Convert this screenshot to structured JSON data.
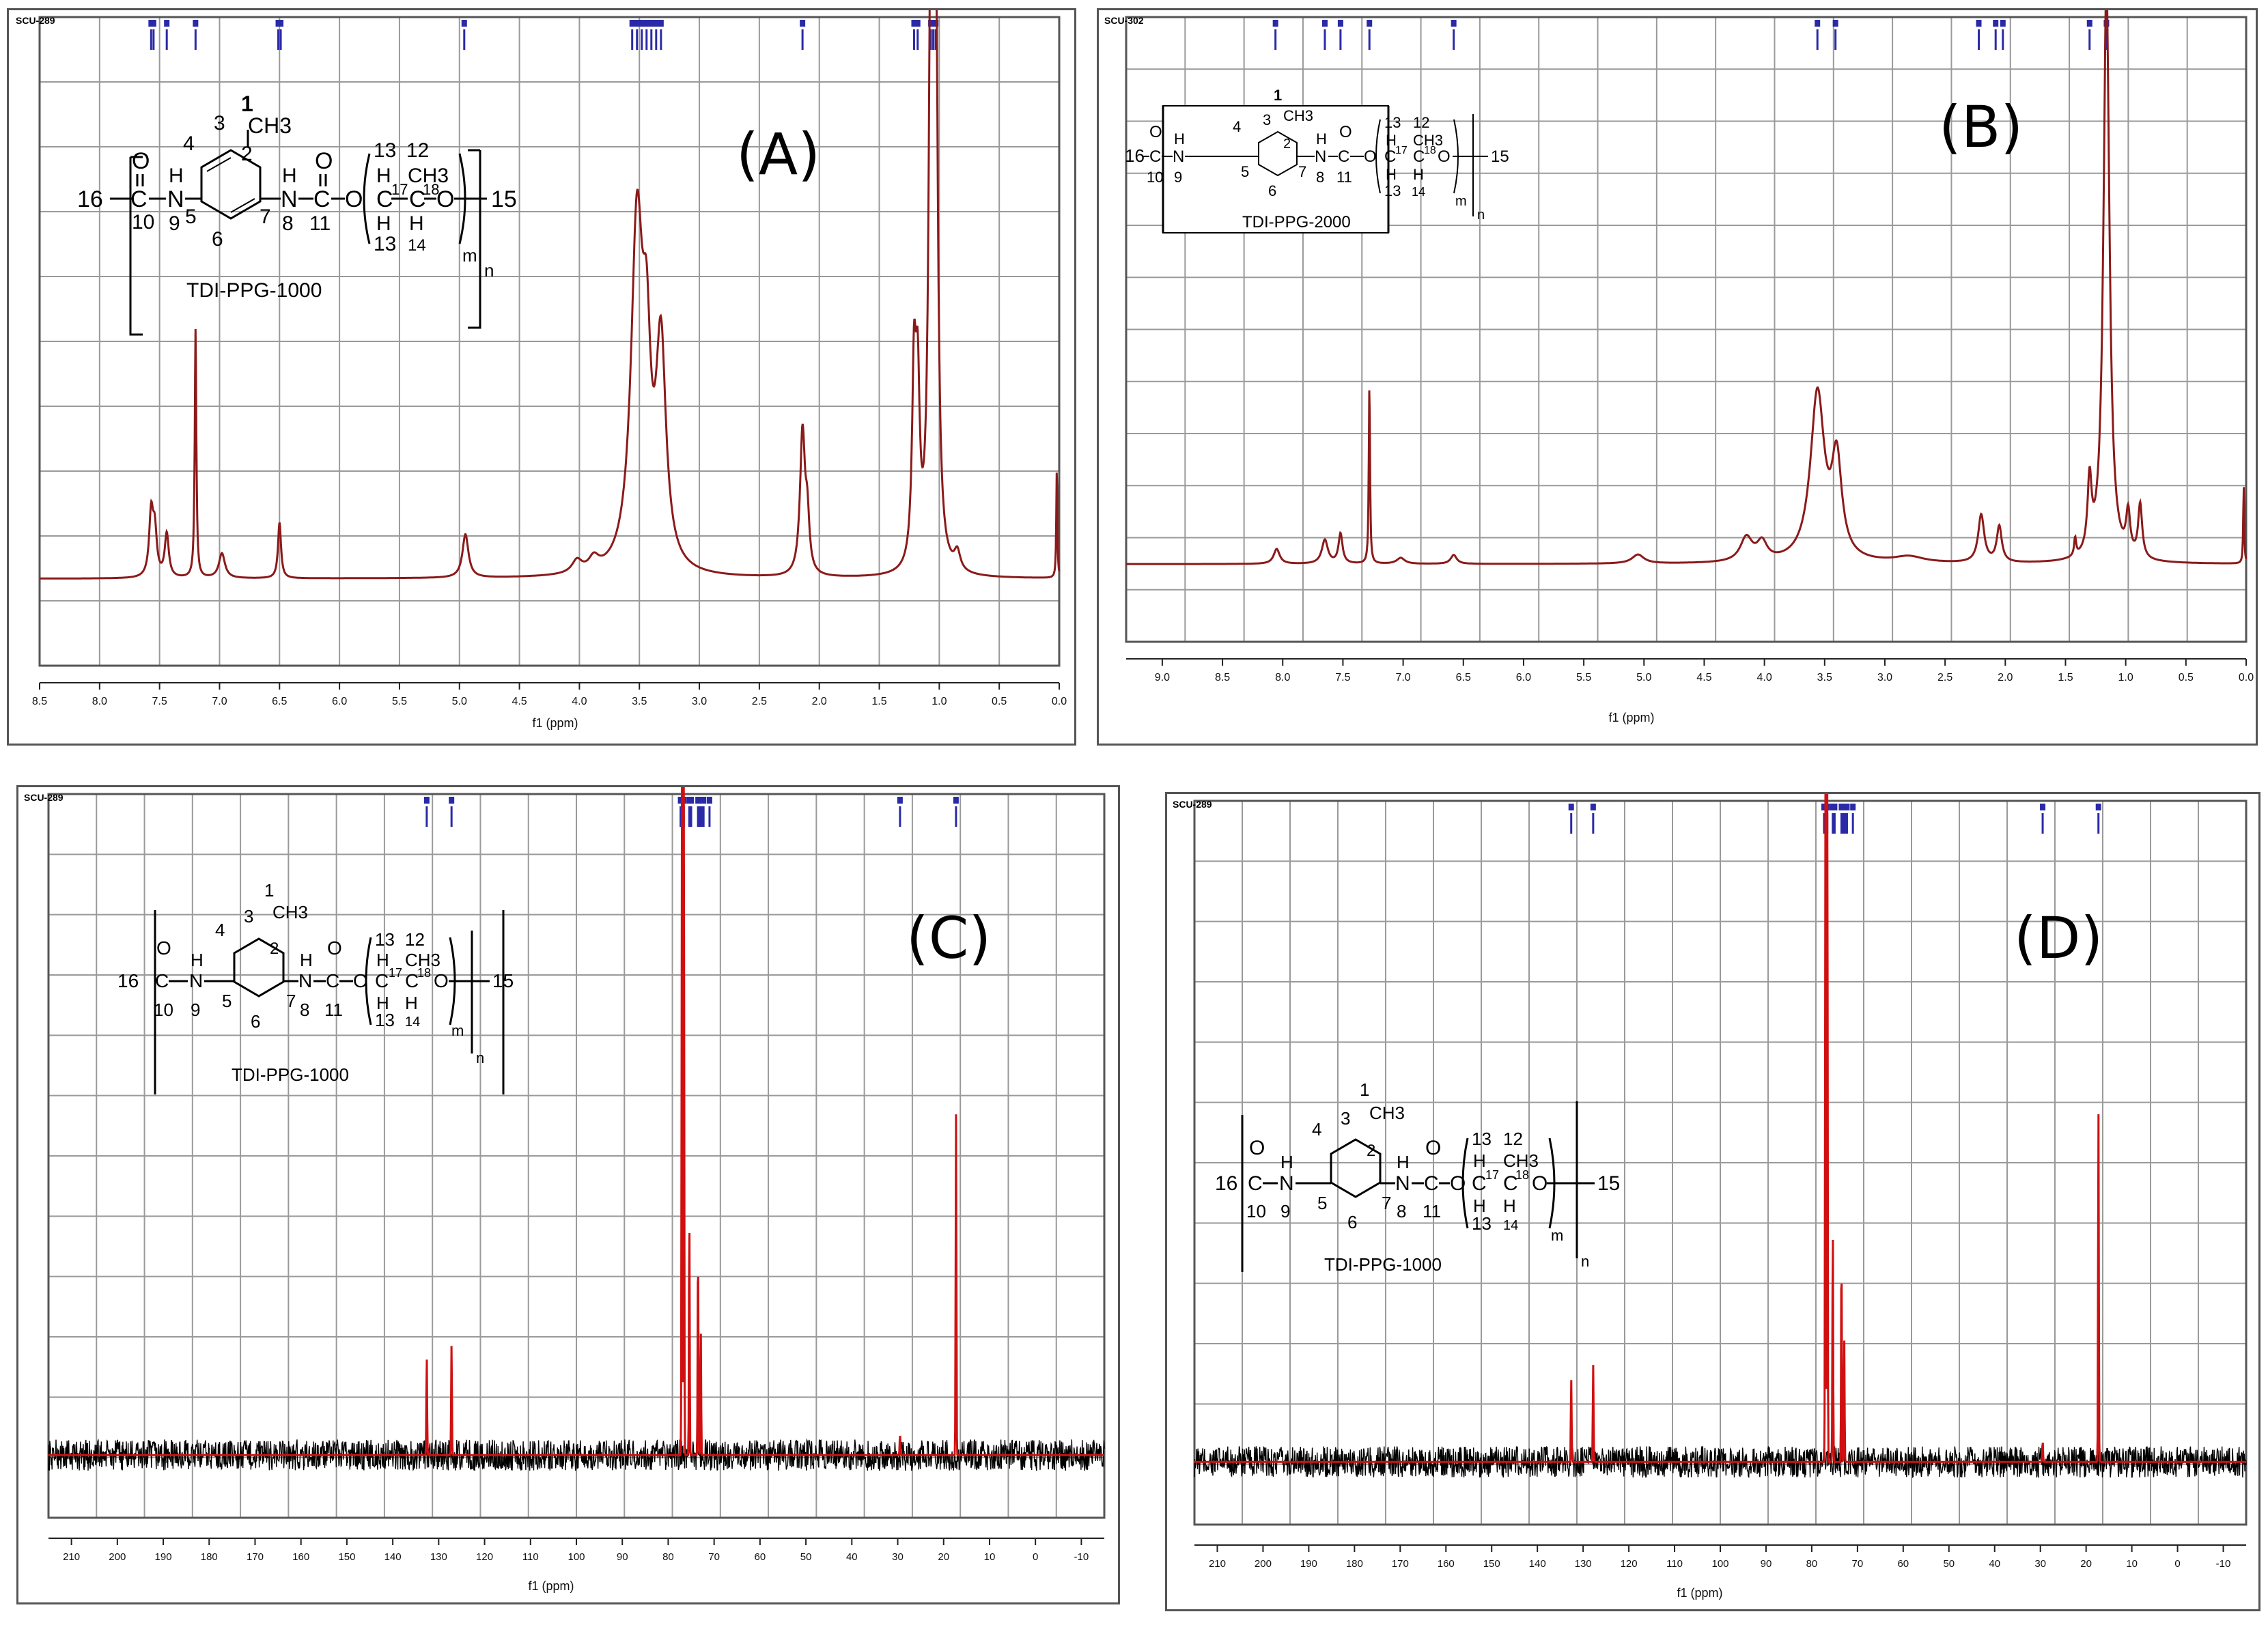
{
  "colors": {
    "spectrum_line": "#8b1a1a",
    "carbon_noise": "#000000",
    "carbon_peaks": "#d01010",
    "grid": "#9a9a9a",
    "frame": "#555555",
    "peak_marks": "#2a2aa8"
  },
  "structure_labels": {
    "numbers": [
      "1",
      "2",
      "3",
      "4",
      "5",
      "6",
      "7",
      "8",
      "9",
      "10",
      "11",
      "12",
      "13",
      "14",
      "15",
      "16",
      "17",
      "18"
    ],
    "atoms": [
      "CH3",
      "H",
      "N",
      "O",
      "C",
      "O",
      "n",
      "m"
    ],
    "name_1000": "TDI-PPG-1000",
    "name_2000": "TDI-PPG-2000"
  },
  "panels": [
    {
      "id": "A",
      "label": "(A)",
      "sample_id": "SCU-289",
      "compound": "TDI-PPG-1000",
      "xlabel": "f1 (ppm)",
      "xticks": [
        "8.5",
        "8.0",
        "7.5",
        "7.0",
        "6.5",
        "6.0",
        "5.5",
        "5.0",
        "4.5",
        "4.0",
        "3.5",
        "3.0",
        "2.5",
        "2.0",
        "1.5",
        "1.0",
        "0.5",
        "0.0"
      ]
    },
    {
      "id": "B",
      "label": "(B)",
      "sample_id": "SCU-302",
      "compound": "TDI-PPG-2000",
      "xlabel": "f1 (ppm)",
      "xticks": [
        "9.0",
        "8.5",
        "8.0",
        "7.5",
        "7.0",
        "6.5",
        "6.0",
        "5.5",
        "5.0",
        "4.5",
        "4.0",
        "3.5",
        "3.0",
        "2.5",
        "2.0",
        "1.5",
        "1.0",
        "0.5",
        "0.0"
      ]
    },
    {
      "id": "C",
      "label": "(C)",
      "sample_id": "SCU-289",
      "compound": "TDI-PPG-1000",
      "xlabel": "f1 (ppm)",
      "xticks": [
        "210",
        "200",
        "190",
        "180",
        "170",
        "160",
        "150",
        "140",
        "130",
        "120",
        "110",
        "100",
        "90",
        "80",
        "70",
        "60",
        "50",
        "40",
        "30",
        "20",
        "10",
        "0",
        "-10"
      ]
    },
    {
      "id": "D",
      "label": "(D)",
      "sample_id": "SCU-289",
      "compound": "TDI-PPG-1000",
      "xlabel": "f1 (ppm)",
      "xticks": [
        "210",
        "200",
        "190",
        "180",
        "170",
        "160",
        "150",
        "140",
        "130",
        "120",
        "110",
        "100",
        "90",
        "80",
        "70",
        "60",
        "50",
        "40",
        "30",
        "20",
        "10",
        "0",
        "-10"
      ]
    }
  ],
  "chart_data": [
    {
      "type": "line",
      "panel": "A",
      "xlabel": "f1 (ppm)",
      "xlim": [
        8.5,
        0.0
      ],
      "ylim": [
        0,
        1
      ],
      "grid": true,
      "baseline": 0.14,
      "peaks": [
        {
          "x": 7.57,
          "h": 0.1,
          "w": 0.02
        },
        {
          "x": 7.54,
          "h": 0.07,
          "w": 0.02
        },
        {
          "x": 7.44,
          "h": 0.07,
          "w": 0.02
        },
        {
          "x": 7.2,
          "h": 0.4,
          "w": 0.008
        },
        {
          "x": 6.98,
          "h": 0.04,
          "w": 0.03
        },
        {
          "x": 6.5,
          "h": 0.09,
          "w": 0.015
        },
        {
          "x": 4.95,
          "h": 0.07,
          "w": 0.03
        },
        {
          "x": 4.02,
          "h": 0.02,
          "w": 0.05
        },
        {
          "x": 3.88,
          "h": 0.02,
          "w": 0.05
        },
        {
          "x": 3.52,
          "h": 0.55,
          "w": 0.06
        },
        {
          "x": 3.44,
          "h": 0.26,
          "w": 0.04
        },
        {
          "x": 3.32,
          "h": 0.35,
          "w": 0.05
        },
        {
          "x": 2.14,
          "h": 0.23,
          "w": 0.025
        },
        {
          "x": 2.1,
          "h": 0.08,
          "w": 0.02
        },
        {
          "x": 1.21,
          "h": 0.3,
          "w": 0.02
        },
        {
          "x": 1.18,
          "h": 0.26,
          "w": 0.02
        },
        {
          "x": 1.07,
          "h": 0.98,
          "w": 0.02
        },
        {
          "x": 1.03,
          "h": 0.93,
          "w": 0.02
        },
        {
          "x": 0.85,
          "h": 0.03,
          "w": 0.03
        },
        {
          "x": 0.02,
          "h": 0.18,
          "w": 0.005
        }
      ],
      "peak_marks": [
        7.57,
        7.55,
        7.44,
        7.2,
        6.51,
        6.49,
        4.96,
        3.56,
        3.52,
        3.48,
        3.44,
        3.4,
        3.36,
        3.32,
        2.14,
        1.21,
        1.18,
        1.07,
        1.05,
        1.03
      ]
    },
    {
      "type": "line",
      "panel": "B",
      "xlabel": "f1 (ppm)",
      "xlim": [
        9.3,
        0.0
      ],
      "ylim": [
        0,
        1
      ],
      "grid": true,
      "baseline": 0.13,
      "peaks": [
        {
          "x": 8.05,
          "h": 0.025,
          "w": 0.03
        },
        {
          "x": 7.65,
          "h": 0.04,
          "w": 0.03
        },
        {
          "x": 7.52,
          "h": 0.05,
          "w": 0.02
        },
        {
          "x": 7.28,
          "h": 0.3,
          "w": 0.006
        },
        {
          "x": 7.02,
          "h": 0.01,
          "w": 0.04
        },
        {
          "x": 6.58,
          "h": 0.015,
          "w": 0.03
        },
        {
          "x": 5.05,
          "h": 0.015,
          "w": 0.06
        },
        {
          "x": 4.15,
          "h": 0.04,
          "w": 0.06
        },
        {
          "x": 4.02,
          "h": 0.03,
          "w": 0.05
        },
        {
          "x": 3.56,
          "h": 0.28,
          "w": 0.07
        },
        {
          "x": 3.4,
          "h": 0.16,
          "w": 0.05
        },
        {
          "x": 2.8,
          "h": 0.01,
          "w": 0.15
        },
        {
          "x": 2.2,
          "h": 0.08,
          "w": 0.03
        },
        {
          "x": 2.05,
          "h": 0.06,
          "w": 0.025
        },
        {
          "x": 1.42,
          "h": 0.03,
          "w": 0.01
        },
        {
          "x": 1.3,
          "h": 0.12,
          "w": 0.02
        },
        {
          "x": 1.16,
          "h": 0.97,
          "w": 0.03
        },
        {
          "x": 0.98,
          "h": 0.07,
          "w": 0.02
        },
        {
          "x": 0.88,
          "h": 0.09,
          "w": 0.02
        },
        {
          "x": 0.02,
          "h": 0.13,
          "w": 0.005
        }
      ],
      "peak_marks": [
        8.06,
        7.65,
        7.52,
        7.28,
        6.58,
        3.56,
        3.41,
        2.22,
        2.08,
        2.02,
        1.3,
        1.16
      ]
    },
    {
      "type": "line",
      "panel": "C",
      "xlabel": "f1 (ppm)",
      "xlim": [
        215,
        -15
      ],
      "ylim": [
        0,
        1
      ],
      "grid": true,
      "baseline": 0.09,
      "noise": 0.014,
      "peaks": [
        {
          "x": 132.6,
          "h": 0.14
        },
        {
          "x": 127.2,
          "h": 0.16
        },
        {
          "x": 77.0,
          "h": 1.05
        },
        {
          "x": 76.6,
          "h": 1.05
        },
        {
          "x": 75.4,
          "h": 0.34
        },
        {
          "x": 73.5,
          "h": 0.3
        },
        {
          "x": 72.9,
          "h": 0.18
        },
        {
          "x": 29.5,
          "h": 0.03
        },
        {
          "x": 17.3,
          "h": 0.49
        }
      ],
      "peak_marks": [
        132.6,
        127.2,
        77.3,
        77.0,
        76.8,
        76.6,
        75.4,
        75.0,
        73.5,
        73.2,
        72.9,
        72.6,
        72.3,
        71.0,
        29.5,
        17.3
      ]
    },
    {
      "type": "line",
      "panel": "D",
      "xlabel": "f1 (ppm)",
      "xlim": [
        215,
        -15
      ],
      "ylim": [
        0,
        1
      ],
      "grid": true,
      "baseline": 0.09,
      "noise": 0.014,
      "peaks": [
        {
          "x": 132.6,
          "h": 0.12
        },
        {
          "x": 127.8,
          "h": 0.14
        },
        {
          "x": 77.0,
          "h": 1.05
        },
        {
          "x": 76.6,
          "h": 1.05
        },
        {
          "x": 75.4,
          "h": 0.34
        },
        {
          "x": 73.5,
          "h": 0.3
        },
        {
          "x": 72.9,
          "h": 0.18
        },
        {
          "x": 29.5,
          "h": 0.03
        },
        {
          "x": 17.3,
          "h": 0.5
        }
      ],
      "peak_marks": [
        132.6,
        127.8,
        77.3,
        77.0,
        76.8,
        76.6,
        75.4,
        75.0,
        73.5,
        73.2,
        72.9,
        72.6,
        72.3,
        71.0,
        29.5,
        17.3
      ]
    }
  ]
}
